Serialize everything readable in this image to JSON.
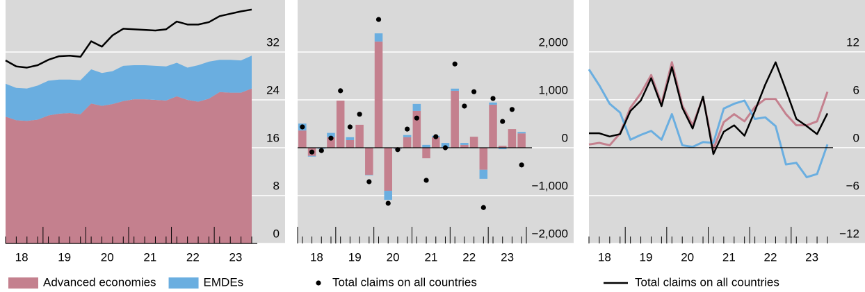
{
  "chart_data": [
    {
      "type": "area",
      "x": [
        18,
        18.25,
        18.5,
        18.75,
        19,
        19.25,
        19.5,
        19.75,
        20,
        20.25,
        20.5,
        20.75,
        21,
        21.25,
        21.5,
        21.75,
        22,
        22.25,
        22.5,
        22.75,
        23,
        23.25,
        23.5,
        23.75
      ],
      "xlim": [
        18,
        23.75
      ],
      "xticks": [
        {
          "value": 18.375,
          "label": "18"
        },
        {
          "value": 19.375,
          "label": "19"
        },
        {
          "value": 20.375,
          "label": "20"
        },
        {
          "value": 21.375,
          "label": "21"
        },
        {
          "value": 22.375,
          "label": "22"
        },
        {
          "value": 23.375,
          "label": "23"
        }
      ],
      "ylim": [
        0,
        40.7
      ],
      "yticks": [
        0,
        8,
        16,
        24,
        32
      ],
      "grid": true,
      "series": [
        {
          "name": "Advanced economies",
          "color": "#c4808e",
          "values": [
            21.2,
            20.6,
            20.5,
            20.7,
            21.4,
            21.7,
            21.8,
            21.6,
            23.4,
            23.0,
            23.3,
            23.8,
            24.1,
            24.1,
            24.0,
            23.9,
            24.6,
            24.0,
            23.7,
            24.2,
            25.3,
            25.2,
            25.2,
            25.9
          ]
        },
        {
          "name": "EMDEs",
          "color": "#6aaee0",
          "values": [
            5.5,
            5.4,
            5.4,
            5.7,
            5.8,
            5.7,
            5.6,
            5.7,
            5.7,
            5.5,
            5.5,
            5.9,
            5.7,
            5.7,
            5.7,
            5.7,
            5.6,
            5.4,
            6.1,
            6.2,
            5.4,
            5.5,
            5.4,
            5.5
          ]
        },
        {
          "type": "line",
          "color": "#000000",
          "values": [
            30.6,
            29.6,
            29.4,
            29.8,
            30.7,
            31.3,
            31.4,
            31.2,
            33.8,
            32.9,
            34.8,
            35.9,
            35.8,
            35.7,
            35.6,
            35.8,
            37.1,
            36.6,
            36.6,
            37.0,
            38.0,
            38.4,
            38.8,
            39.1
          ]
        }
      ]
    },
    {
      "type": "bar",
      "x": [
        18,
        18.25,
        18.5,
        18.75,
        19,
        19.25,
        19.5,
        19.75,
        20,
        20.25,
        20.5,
        20.75,
        21,
        21.25,
        21.5,
        21.75,
        22,
        22.25,
        22.5,
        22.75,
        23,
        23.25,
        23.5,
        23.75
      ],
      "xlim": [
        17.875,
        23.875
      ],
      "xticks": [
        {
          "value": 18.375,
          "label": "18"
        },
        {
          "value": 19.375,
          "label": "19"
        },
        {
          "value": 20.375,
          "label": "20"
        },
        {
          "value": 21.375,
          "label": "21"
        },
        {
          "value": 22.375,
          "label": "22"
        },
        {
          "value": 23.375,
          "label": "23"
        }
      ],
      "ylim": [
        -2000,
        3087
      ],
      "yticks": [
        {
          "value": -2000,
          "label": "−2,000"
        },
        {
          "value": -1000,
          "label": "−1,000"
        },
        0,
        {
          "value": 1000,
          "label": "1,000"
        },
        {
          "value": 2000,
          "label": "2,000"
        }
      ],
      "grid": true,
      "series": [
        {
          "color": "#c4808e",
          "values": [
            360,
            -170,
            0,
            220,
            985,
            160,
            480,
            -565,
            2220,
            -900,
            -20,
            220,
            770,
            -220,
            220,
            0,
            1190,
            60,
            230,
            -460,
            900,
            40,
            390,
            300
          ]
        },
        {
          "color": "#6aaee0",
          "values": [
            145,
            -15,
            -20,
            90,
            0,
            60,
            0,
            -10,
            170,
            -190,
            -10,
            45,
            145,
            60,
            30,
            100,
            45,
            40,
            -10,
            -190,
            45,
            -30,
            0,
            30
          ]
        },
        {
          "type": "scatter",
          "name": "Total claims on all countries",
          "color": "#000000",
          "values": [
            435,
            -90,
            -60,
            200,
            1190,
            435,
            700,
            -710,
            2680,
            -1160,
            -40,
            390,
            620,
            -680,
            230,
            0,
            1750,
            870,
            1170,
            -1250,
            1030,
            550,
            800,
            -360
          ]
        }
      ]
    },
    {
      "type": "line",
      "x": [
        18,
        18.25,
        18.5,
        18.75,
        19,
        19.25,
        19.5,
        19.75,
        20,
        20.25,
        20.5,
        20.75,
        21,
        21.25,
        21.5,
        21.75,
        22,
        22.25,
        22.5,
        22.75,
        23,
        23.25,
        23.5,
        23.75
      ],
      "xlim": [
        18,
        23.75
      ],
      "xticks": [
        {
          "value": 18.375,
          "label": "18"
        },
        {
          "value": 19.375,
          "label": "19"
        },
        {
          "value": 20.375,
          "label": "20"
        },
        {
          "value": 21.375,
          "label": "21"
        },
        {
          "value": 22.375,
          "label": "22"
        },
        {
          "value": 23.375,
          "label": "23"
        }
      ],
      "ylim": [
        -12,
        18.5
      ],
      "yticks": [
        {
          "value": -12,
          "label": "−12"
        },
        {
          "value": -6,
          "label": "−6"
        },
        0,
        6,
        12
      ],
      "grid": true,
      "series": [
        {
          "color": "#c4808e",
          "values": [
            0.4,
            0.6,
            0.3,
            1.8,
            5.0,
            6.8,
            9.1,
            5.5,
            10.7,
            5.3,
            2.8,
            6.3,
            -0.2,
            3.2,
            4.2,
            3.3,
            5.1,
            6.1,
            6.1,
            4.2,
            2.8,
            2.8,
            3.3,
            7.0
          ]
        },
        {
          "color": "#6aaee0",
          "values": [
            9.8,
            7.8,
            5.5,
            4.4,
            1.0,
            1.6,
            2.1,
            1.0,
            4.2,
            0.3,
            0.1,
            0.7,
            0.6,
            4.9,
            5.5,
            5.9,
            3.6,
            3.8,
            2.7,
            -2.1,
            -1.9,
            -3.7,
            -3.3,
            0.4
          ]
        },
        {
          "name": "Total claims on all countries",
          "color": "#000000",
          "values": [
            1.8,
            1.8,
            1.4,
            1.7,
            4.6,
            5.9,
            8.7,
            5.2,
            10.1,
            5.0,
            2.4,
            6.4,
            -0.8,
            2.0,
            2.8,
            1.5,
            4.6,
            7.9,
            10.7,
            7.2,
            3.6,
            2.7,
            1.7,
            4.3
          ]
        }
      ]
    }
  ]
}
